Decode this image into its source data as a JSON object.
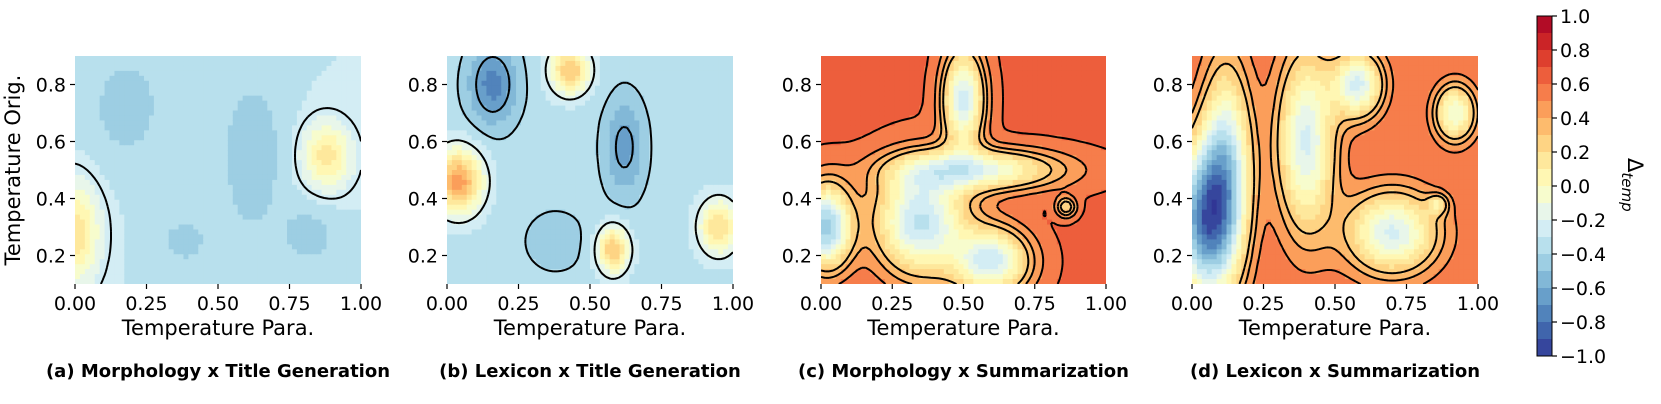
{
  "chart_data": [
    {
      "type": "heatmap",
      "subtype": "filled-contour",
      "caption": "(a) Morphology x Title Generation",
      "xlabel": "Temperature Para.",
      "ylabel": "Temperature Orig.",
      "xlim": [
        0,
        1
      ],
      "ylim": [
        0.1,
        0.9
      ],
      "xticks": [
        "0.00",
        "0.25",
        "0.50",
        "0.75",
        "1.00"
      ],
      "yticks": [
        "0.2",
        "0.4",
        "0.6",
        "0.8"
      ],
      "base_value": -0.3,
      "contour_style": "dashed",
      "levels_drawn": [
        -0.25,
        -0.5
      ],
      "features": [
        {
          "x": 0.18,
          "y": 0.72,
          "value": -0.45,
          "sx": 0.1,
          "sy": 0.15
        },
        {
          "x": 0.62,
          "y": 0.55,
          "value": -0.48,
          "sx": 0.08,
          "sy": 0.2
        },
        {
          "x": 0.38,
          "y": 0.25,
          "value": -0.42,
          "sx": 0.09,
          "sy": 0.09
        },
        {
          "x": 0.82,
          "y": 0.27,
          "value": -0.45,
          "sx": 0.07,
          "sy": 0.08
        },
        {
          "x": 0.0,
          "y": 0.28,
          "value": 0.18,
          "sx": 0.06,
          "sy": 0.12
        },
        {
          "x": 0.88,
          "y": 0.55,
          "value": 0.15,
          "sx": 0.06,
          "sy": 0.08
        }
      ]
    },
    {
      "type": "heatmap",
      "subtype": "filled-contour",
      "caption": "(b) Lexicon x Title Generation",
      "xlabel": "Temperature Para.",
      "ylabel": "",
      "xlim": [
        0,
        1
      ],
      "ylim": [
        0.1,
        0.9
      ],
      "xticks": [
        "0.00",
        "0.25",
        "0.50",
        "0.75",
        "1.00"
      ],
      "yticks": [
        "0.2",
        "0.4",
        "0.6",
        "0.8"
      ],
      "base_value": -0.35,
      "contour_style": "dashed",
      "levels_drawn": [
        -0.2,
        -0.4,
        -0.6,
        -0.8
      ],
      "features": [
        {
          "x": 0.16,
          "y": 0.8,
          "value": -0.75,
          "sx": 0.06,
          "sy": 0.1
        },
        {
          "x": 0.62,
          "y": 0.58,
          "value": -0.65,
          "sx": 0.05,
          "sy": 0.12
        },
        {
          "x": 0.38,
          "y": 0.25,
          "value": -0.45,
          "sx": 0.09,
          "sy": 0.09
        },
        {
          "x": 0.04,
          "y": 0.46,
          "value": 0.45,
          "sx": 0.06,
          "sy": 0.08
        },
        {
          "x": 0.43,
          "y": 0.85,
          "value": 0.3,
          "sx": 0.05,
          "sy": 0.06
        },
        {
          "x": 0.58,
          "y": 0.22,
          "value": 0.3,
          "sx": 0.04,
          "sy": 0.06
        },
        {
          "x": 0.95,
          "y": 0.3,
          "value": 0.2,
          "sx": 0.05,
          "sy": 0.07
        }
      ]
    },
    {
      "type": "heatmap",
      "subtype": "filled-contour",
      "caption": "(c) Morphology x Summarization",
      "xlabel": "Temperature Para.",
      "ylabel": "",
      "xlim": [
        0,
        1
      ],
      "ylim": [
        0.1,
        0.9
      ],
      "xticks": [
        "0.00",
        "0.25",
        "0.50",
        "0.75",
        "1.00"
      ],
      "yticks": [
        "0.2",
        "0.4",
        "0.6",
        "0.8"
      ],
      "base_value": 0.62,
      "contour_style": "solid",
      "levels_drawn": [
        0.3,
        0.4,
        0.5,
        0.6
      ],
      "features": [
        {
          "x": 0.02,
          "y": 0.3,
          "value": -0.45,
          "sx": 0.06,
          "sy": 0.1
        },
        {
          "x": 0.35,
          "y": 0.32,
          "value": -0.32,
          "sx": 0.11,
          "sy": 0.13
        },
        {
          "x": 0.6,
          "y": 0.18,
          "value": -0.25,
          "sx": 0.09,
          "sy": 0.08
        },
        {
          "x": 0.5,
          "y": 0.75,
          "value": -0.25,
          "sx": 0.05,
          "sy": 0.12
        },
        {
          "x": 0.55,
          "y": 0.5,
          "value": -0.12,
          "sx": 0.2,
          "sy": 0.05
        },
        {
          "x": 0.86,
          "y": 0.37,
          "value": 0.2,
          "sx": 0.025,
          "sy": 0.025
        }
      ]
    },
    {
      "type": "heatmap",
      "subtype": "filled-contour",
      "caption": "(d) Lexicon x Summarization",
      "xlabel": "Temperature Para.",
      "ylabel": "",
      "xlim": [
        0,
        1
      ],
      "ylim": [
        0.1,
        0.9
      ],
      "xticks": [
        "0.00",
        "0.25",
        "0.50",
        "0.75",
        "1.00"
      ],
      "yticks": [
        "0.2",
        "0.4",
        "0.6",
        "0.8"
      ],
      "base_value": 0.6,
      "contour_style": "solid",
      "levels_drawn": [
        0.3,
        0.4,
        0.5,
        0.6
      ],
      "features": [
        {
          "x": 0.04,
          "y": 0.32,
          "value": -0.6,
          "sx": 0.07,
          "sy": 0.18
        },
        {
          "x": 0.12,
          "y": 0.5,
          "value": -0.3,
          "sx": 0.06,
          "sy": 0.25
        },
        {
          "x": 0.4,
          "y": 0.6,
          "value": -0.22,
          "sx": 0.07,
          "sy": 0.22
        },
        {
          "x": 0.7,
          "y": 0.28,
          "value": -0.22,
          "sx": 0.11,
          "sy": 0.1
        },
        {
          "x": 0.58,
          "y": 0.8,
          "value": -0.22,
          "sx": 0.06,
          "sy": 0.08
        },
        {
          "x": 0.92,
          "y": 0.7,
          "value": -0.1,
          "sx": 0.05,
          "sy": 0.07
        },
        {
          "x": 0.86,
          "y": 0.38,
          "value": 0.25,
          "sx": 0.025,
          "sy": 0.025
        }
      ]
    }
  ],
  "colorbar": {
    "label": "Δ",
    "label_sub": "temp",
    "min": -1.0,
    "max": 1.0,
    "ticks": [
      "1.0",
      "0.8",
      "0.6",
      "0.4",
      "0.2",
      "0.0",
      "−0.2",
      "−0.4",
      "−0.6",
      "−0.8",
      "−1.0"
    ],
    "colors": [
      "#313695",
      "#4575b4",
      "#74add1",
      "#abd9e9",
      "#e0f3f8",
      "#ffffbf",
      "#fee090",
      "#fdae61",
      "#f46d43",
      "#d73027",
      "#a50026"
    ]
  }
}
